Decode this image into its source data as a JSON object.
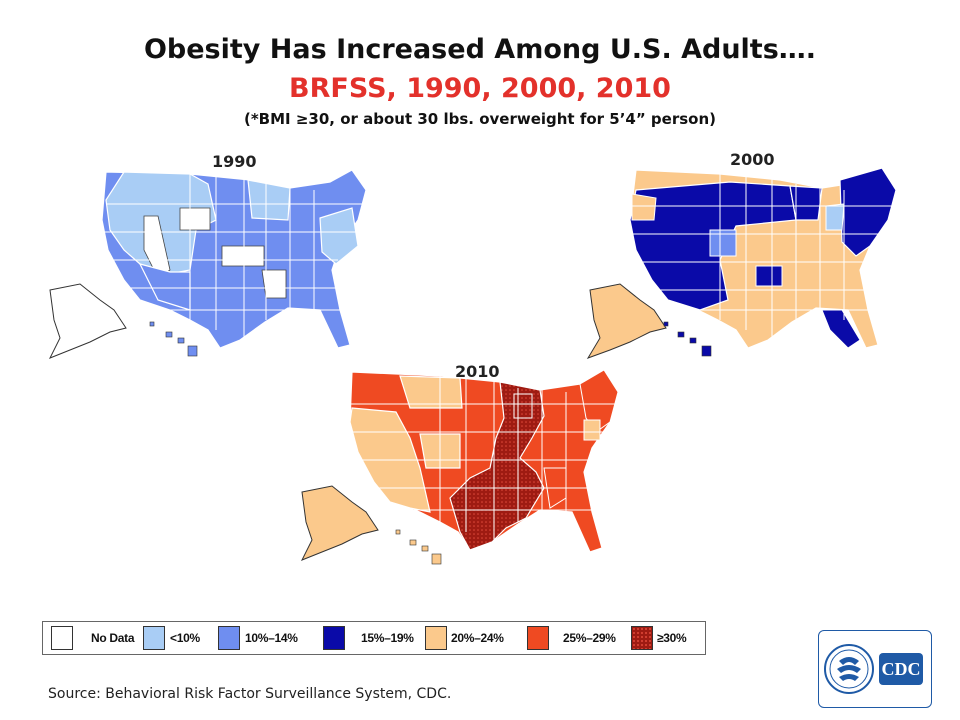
{
  "title": "Obesity Has Increased Among U.S. Adults….",
  "subtitle": "BRFSS, 1990, 2000, 2010",
  "note": "(*BMI ≥30, or about 30 lbs. overweight for 5’4” person)",
  "maps": [
    {
      "year": "1990",
      "dominant_category": "10%–14%",
      "mix": [
        "<10%",
        "10%–14%"
      ]
    },
    {
      "year": "2000",
      "dominant_category": "15%–19%",
      "mix": [
        "10%–14%",
        "15%–19%",
        "20%–24%"
      ]
    },
    {
      "year": "2010",
      "dominant_category": "25%–29%",
      "mix": [
        "20%–24%",
        "25%–29%",
        "≥30%"
      ]
    }
  ],
  "legend": [
    {
      "label": "No Data",
      "color": "#ffffff",
      "pattern": "none"
    },
    {
      "label": "<10%",
      "color": "#a9cdf5",
      "pattern": "none"
    },
    {
      "label": "10%–14%",
      "color": "#6f8ef0",
      "pattern": "none"
    },
    {
      "label": "15%–19%",
      "color": "#0a0aa8",
      "pattern": "none"
    },
    {
      "label": "20%–24%",
      "color": "#fbc98c",
      "pattern": "none"
    },
    {
      "label": "25%–29%",
      "color": "#ef4a22",
      "pattern": "none"
    },
    {
      "label": "≥30%",
      "color": "#9e1b12",
      "pattern": "dots"
    }
  ],
  "source": "Source: Behavioral Risk Factor Surveillance System, CDC.",
  "logo": {
    "text": "CDC",
    "icon": "hhs-eagle-icon",
    "brand_color": "#1f5aa6"
  }
}
